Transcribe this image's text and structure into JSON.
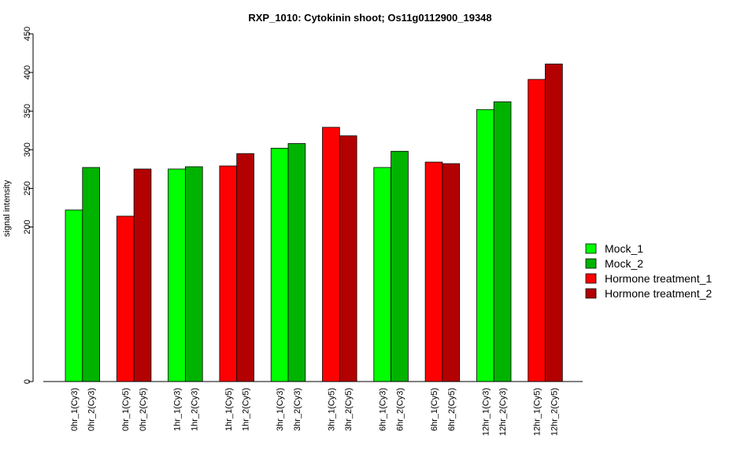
{
  "chart_data": {
    "type": "bar",
    "title": "RXP_1010: Cytokinin shoot; Os11g0112900_19348",
    "ylabel": "signal intensity",
    "xlabel": "",
    "ylim": [
      0,
      450
    ],
    "yticks": [
      0,
      200,
      250,
      300,
      350,
      400,
      450
    ],
    "grid": false,
    "legend_position": "right",
    "series_styles": [
      {
        "name": "Mock_1",
        "color": "#00ff00"
      },
      {
        "name": "Mock_2",
        "color": "#00b300"
      },
      {
        "name": "Hormone treatment_1",
        "color": "#ff0000"
      },
      {
        "name": "Hormone treatment_2",
        "color": "#b30000"
      }
    ],
    "bars": [
      {
        "label": "0hr_1(Cy3)",
        "value": 222,
        "series": 0
      },
      {
        "label": "0hr_2(Cy3)",
        "value": 277,
        "series": 1
      },
      {
        "label": "0hr_1(Cy5)",
        "value": 214,
        "series": 2
      },
      {
        "label": "0hr_2(Cy5)",
        "value": 275,
        "series": 3
      },
      {
        "label": "1hr_1(Cy3)",
        "value": 275,
        "series": 0
      },
      {
        "label": "1hr_2(Cy3)",
        "value": 278,
        "series": 1
      },
      {
        "label": "1hr_1(Cy5)",
        "value": 279,
        "series": 2
      },
      {
        "label": "1hr_2(Cy5)",
        "value": 295,
        "series": 3
      },
      {
        "label": "3hr_1(Cy3)",
        "value": 302,
        "series": 0
      },
      {
        "label": "3hr_2(Cy3)",
        "value": 308,
        "series": 1
      },
      {
        "label": "3hr_1(Cy5)",
        "value": 329,
        "series": 2
      },
      {
        "label": "3hr_2(Cy5)",
        "value": 318,
        "series": 3
      },
      {
        "label": "6hr_1(Cy3)",
        "value": 277,
        "series": 0
      },
      {
        "label": "6hr_2(Cy3)",
        "value": 298,
        "series": 1
      },
      {
        "label": "6hr_1(Cy5)",
        "value": 284,
        "series": 2
      },
      {
        "label": "6hr_2(Cy5)",
        "value": 282,
        "series": 3
      },
      {
        "label": "12hr_1(Cy3)",
        "value": 352,
        "series": 0
      },
      {
        "label": "12hr_2(Cy3)",
        "value": 362,
        "series": 1
      },
      {
        "label": "12hr_1(Cy5)",
        "value": 391,
        "series": 2
      },
      {
        "label": "12hr_2(Cy5)",
        "value": 411,
        "series": 3
      }
    ]
  }
}
